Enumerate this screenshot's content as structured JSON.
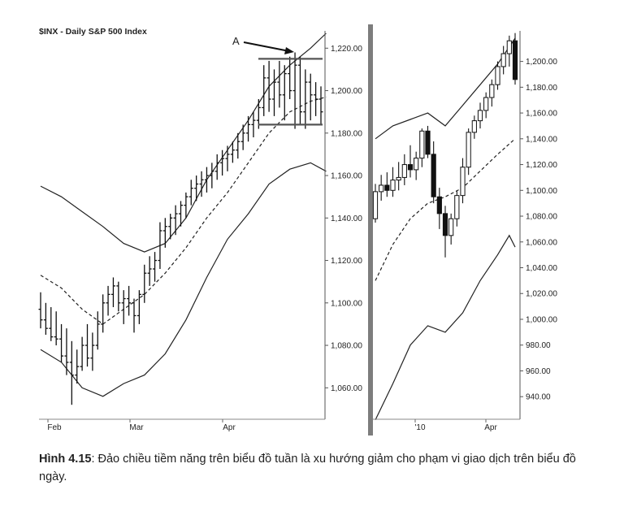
{
  "figure": {
    "caption_label": "Hình 4.15",
    "caption_text": ": Đảo chiều tiềm năng trên biểu đồ tuần là xu hướng giảm cho phạm vi giao dịch trên biểu đồ ngày."
  },
  "chart_data": [
    {
      "type": "ohlc-bands",
      "title": "$INX - Daily  S&P 500 Index",
      "annotation": "A",
      "x_tick_labels": [
        "Feb",
        "Mar",
        "Apr"
      ],
      "y_tick_labels": [
        "1,220.00",
        "1,200.00",
        "1,180.00",
        "1,160.00",
        "1,140.00",
        "1,120.00",
        "1,100.00",
        "1,080.00",
        "1,060.00"
      ],
      "ylim": [
        1050,
        1230
      ],
      "horizontal_lines": [
        1215,
        1184
      ],
      "bars": [
        [
          1097,
          1105,
          1088,
          1092
        ],
        [
          1092,
          1100,
          1085,
          1088
        ],
        [
          1088,
          1098,
          1082,
          1084
        ],
        [
          1084,
          1096,
          1080,
          1083
        ],
        [
          1083,
          1090,
          1072,
          1075
        ],
        [
          1075,
          1088,
          1066,
          1072
        ],
        [
          1072,
          1082,
          1052,
          1066
        ],
        [
          1066,
          1078,
          1062,
          1070
        ],
        [
          1070,
          1084,
          1068,
          1080
        ],
        [
          1080,
          1090,
          1070,
          1074
        ],
        [
          1074,
          1086,
          1068,
          1080
        ],
        [
          1080,
          1096,
          1078,
          1090
        ],
        [
          1090,
          1104,
          1086,
          1100
        ],
        [
          1100,
          1108,
          1094,
          1104
        ],
        [
          1104,
          1112,
          1098,
          1108
        ],
        [
          1108,
          1110,
          1096,
          1100
        ],
        [
          1100,
          1106,
          1090,
          1102
        ],
        [
          1102,
          1108,
          1094,
          1100
        ],
        [
          1100,
          1102,
          1086,
          1094
        ],
        [
          1094,
          1106,
          1090,
          1104
        ],
        [
          1104,
          1118,
          1100,
          1114
        ],
        [
          1114,
          1122,
          1108,
          1116
        ],
        [
          1116,
          1124,
          1110,
          1120
        ],
        [
          1120,
          1138,
          1116,
          1134
        ],
        [
          1134,
          1140,
          1126,
          1136
        ],
        [
          1136,
          1142,
          1130,
          1140
        ],
        [
          1140,
          1146,
          1132,
          1142
        ],
        [
          1142,
          1148,
          1136,
          1146
        ],
        [
          1146,
          1152,
          1140,
          1150
        ],
        [
          1150,
          1158,
          1146,
          1154
        ],
        [
          1154,
          1160,
          1148,
          1156
        ],
        [
          1156,
          1162,
          1150,
          1158
        ],
        [
          1158,
          1164,
          1152,
          1160
        ],
        [
          1160,
          1166,
          1154,
          1162
        ],
        [
          1162,
          1170,
          1158,
          1166
        ],
        [
          1166,
          1172,
          1160,
          1168
        ],
        [
          1168,
          1174,
          1162,
          1170
        ],
        [
          1170,
          1176,
          1166,
          1172
        ],
        [
          1172,
          1180,
          1168,
          1176
        ],
        [
          1176,
          1184,
          1172,
          1180
        ],
        [
          1180,
          1188,
          1176,
          1184
        ],
        [
          1184,
          1190,
          1178,
          1186
        ],
        [
          1186,
          1196,
          1182,
          1192
        ],
        [
          1192,
          1212,
          1188,
          1206
        ],
        [
          1206,
          1214,
          1190,
          1196
        ],
        [
          1196,
          1210,
          1188,
          1204
        ],
        [
          1204,
          1214,
          1192,
          1198
        ],
        [
          1198,
          1212,
          1186,
          1208
        ],
        [
          1208,
          1216,
          1196,
          1200
        ],
        [
          1200,
          1218,
          1182,
          1212
        ],
        [
          1212,
          1216,
          1184,
          1190
        ],
        [
          1190,
          1210,
          1182,
          1204
        ],
        [
          1204,
          1208,
          1186,
          1198
        ],
        [
          1198,
          1204,
          1188,
          1196
        ],
        [
          1196,
          1202,
          1184,
          1190
        ]
      ],
      "upper_band": [
        [
          0,
          1155
        ],
        [
          4,
          1150
        ],
        [
          8,
          1143
        ],
        [
          12,
          1136
        ],
        [
          16,
          1128
        ],
        [
          20,
          1124
        ],
        [
          24,
          1128
        ],
        [
          28,
          1140
        ],
        [
          32,
          1158
        ],
        [
          36,
          1172
        ],
        [
          40,
          1186
        ],
        [
          44,
          1202
        ],
        [
          48,
          1212
        ],
        [
          52,
          1220
        ],
        [
          55,
          1227
        ]
      ],
      "middle_ma": [
        [
          0,
          1113
        ],
        [
          4,
          1107
        ],
        [
          8,
          1097
        ],
        [
          12,
          1090
        ],
        [
          16,
          1097
        ],
        [
          20,
          1104
        ],
        [
          24,
          1114
        ],
        [
          28,
          1126
        ],
        [
          32,
          1140
        ],
        [
          36,
          1152
        ],
        [
          40,
          1166
        ],
        [
          44,
          1180
        ],
        [
          48,
          1190
        ],
        [
          52,
          1195
        ],
        [
          55,
          1197
        ]
      ],
      "lower_band": [
        [
          0,
          1078
        ],
        [
          4,
          1072
        ],
        [
          8,
          1060
        ],
        [
          12,
          1056
        ],
        [
          16,
          1062
        ],
        [
          20,
          1066
        ],
        [
          24,
          1076
        ],
        [
          28,
          1092
        ],
        [
          32,
          1112
        ],
        [
          36,
          1130
        ],
        [
          40,
          1142
        ],
        [
          44,
          1156
        ],
        [
          48,
          1163
        ],
        [
          52,
          1166
        ],
        [
          55,
          1162
        ]
      ]
    },
    {
      "type": "candlestick-bands",
      "x_tick_labels": [
        "'10",
        "Apr"
      ],
      "y_tick_labels": [
        "1,200.00",
        "1,180.00",
        "1,160.00",
        "1,140.00",
        "1,120.00",
        "1,100.00",
        "1,080.00",
        "1,060.00",
        "1,040.00",
        "1,020.00",
        "1,000.00",
        "980.00",
        "960.00",
        "940.00"
      ],
      "ylim": [
        920,
        1225
      ],
      "candles": [
        [
          1078,
          1105,
          1075,
          1099
        ],
        [
          1099,
          1112,
          1092,
          1104
        ],
        [
          1104,
          1114,
          1095,
          1100
        ],
        [
          1100,
          1118,
          1095,
          1108
        ],
        [
          1108,
          1122,
          1100,
          1110
        ],
        [
          1110,
          1128,
          1104,
          1120
        ],
        [
          1120,
          1135,
          1110,
          1116
        ],
        [
          1116,
          1130,
          1108,
          1125
        ],
        [
          1125,
          1148,
          1118,
          1146
        ],
        [
          1146,
          1150,
          1125,
          1128
        ],
        [
          1128,
          1138,
          1090,
          1095
        ],
        [
          1095,
          1102,
          1070,
          1082
        ],
        [
          1082,
          1088,
          1048,
          1065
        ],
        [
          1065,
          1082,
          1058,
          1078
        ],
        [
          1078,
          1100,
          1072,
          1096
        ],
        [
          1096,
          1125,
          1090,
          1118
        ],
        [
          1118,
          1148,
          1112,
          1145
        ],
        [
          1145,
          1158,
          1140,
          1154
        ],
        [
          1154,
          1168,
          1148,
          1162
        ],
        [
          1162,
          1176,
          1156,
          1172
        ],
        [
          1172,
          1186,
          1165,
          1182
        ],
        [
          1182,
          1200,
          1178,
          1196
        ],
        [
          1196,
          1212,
          1190,
          1206
        ],
        [
          1206,
          1220,
          1196,
          1216
        ],
        [
          1216,
          1222,
          1182,
          1186
        ]
      ],
      "upper_band": [
        [
          0,
          1140
        ],
        [
          3,
          1150
        ],
        [
          6,
          1155
        ],
        [
          9,
          1160
        ],
        [
          12,
          1150
        ],
        [
          15,
          1166
        ],
        [
          18,
          1182
        ],
        [
          21,
          1198
        ],
        [
          24,
          1218
        ]
      ],
      "middle_ma": [
        [
          0,
          1030
        ],
        [
          3,
          1058
        ],
        [
          6,
          1078
        ],
        [
          9,
          1090
        ],
        [
          12,
          1095
        ],
        [
          15,
          1102
        ],
        [
          18,
          1115
        ],
        [
          21,
          1128
        ],
        [
          24,
          1140
        ]
      ],
      "lower_band": [
        [
          0,
          922
        ],
        [
          3,
          950
        ],
        [
          6,
          980
        ],
        [
          9,
          995
        ],
        [
          12,
          990
        ],
        [
          15,
          1005
        ],
        [
          18,
          1030
        ],
        [
          21,
          1050
        ],
        [
          23,
          1065
        ],
        [
          24,
          1056
        ]
      ]
    }
  ]
}
